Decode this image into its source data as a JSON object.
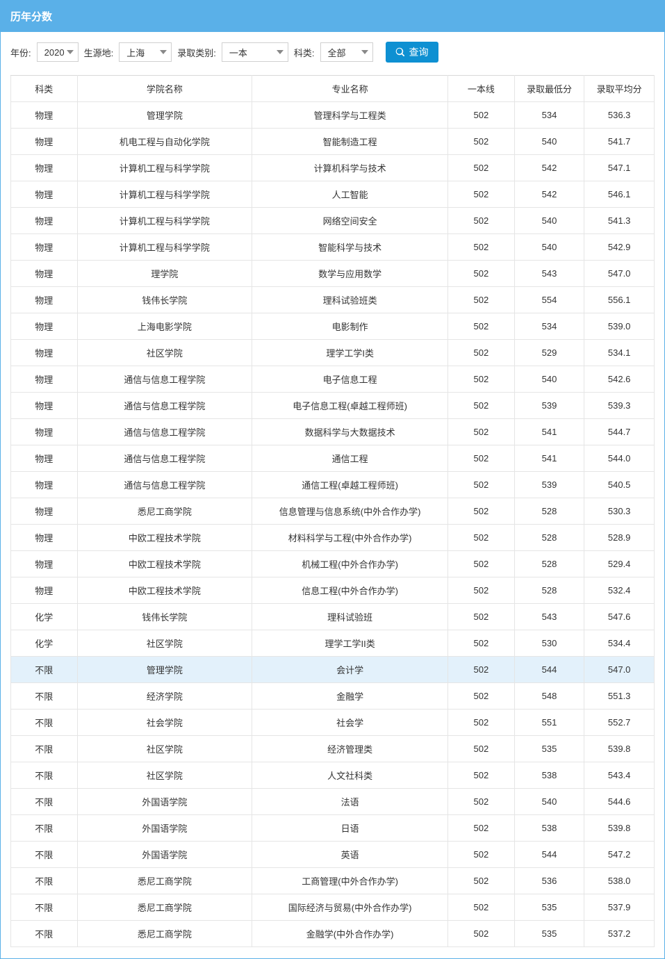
{
  "title": "历年分数",
  "filters": {
    "year_label": "年份:",
    "year_value": "2020",
    "origin_label": "生源地:",
    "origin_value": "上海",
    "category_label": "录取类别:",
    "category_value": "一本",
    "subject_label": "科类:",
    "subject_value": "全部"
  },
  "search_label": "查询",
  "table": {
    "columns": [
      "科类",
      "学院名称",
      "专业名称",
      "一本线",
      "录取最低分",
      "录取平均分"
    ],
    "col_keys": [
      "subject",
      "college",
      "major",
      "line",
      "min",
      "avg"
    ],
    "highlight_index": 22,
    "rows": [
      [
        "物理",
        "管理学院",
        "管理科学与工程类",
        "502",
        "534",
        "536.3"
      ],
      [
        "物理",
        "机电工程与自动化学院",
        "智能制造工程",
        "502",
        "540",
        "541.7"
      ],
      [
        "物理",
        "计算机工程与科学学院",
        "计算机科学与技术",
        "502",
        "542",
        "547.1"
      ],
      [
        "物理",
        "计算机工程与科学学院",
        "人工智能",
        "502",
        "542",
        "546.1"
      ],
      [
        "物理",
        "计算机工程与科学学院",
        "网络空间安全",
        "502",
        "540",
        "541.3"
      ],
      [
        "物理",
        "计算机工程与科学学院",
        "智能科学与技术",
        "502",
        "540",
        "542.9"
      ],
      [
        "物理",
        "理学院",
        "数学与应用数学",
        "502",
        "543",
        "547.0"
      ],
      [
        "物理",
        "钱伟长学院",
        "理科试验班类",
        "502",
        "554",
        "556.1"
      ],
      [
        "物理",
        "上海电影学院",
        "电影制作",
        "502",
        "534",
        "539.0"
      ],
      [
        "物理",
        "社区学院",
        "理学工学I类",
        "502",
        "529",
        "534.1"
      ],
      [
        "物理",
        "通信与信息工程学院",
        "电子信息工程",
        "502",
        "540",
        "542.6"
      ],
      [
        "物理",
        "通信与信息工程学院",
        "电子信息工程(卓越工程师班)",
        "502",
        "539",
        "539.3"
      ],
      [
        "物理",
        "通信与信息工程学院",
        "数据科学与大数据技术",
        "502",
        "541",
        "544.7"
      ],
      [
        "物理",
        "通信与信息工程学院",
        "通信工程",
        "502",
        "541",
        "544.0"
      ],
      [
        "物理",
        "通信与信息工程学院",
        "通信工程(卓越工程师班)",
        "502",
        "539",
        "540.5"
      ],
      [
        "物理",
        "悉尼工商学院",
        "信息管理与信息系统(中外合作办学)",
        "502",
        "528",
        "530.3"
      ],
      [
        "物理",
        "中欧工程技术学院",
        "材料科学与工程(中外合作办学)",
        "502",
        "528",
        "528.9"
      ],
      [
        "物理",
        "中欧工程技术学院",
        "机械工程(中外合作办学)",
        "502",
        "528",
        "529.4"
      ],
      [
        "物理",
        "中欧工程技术学院",
        "信息工程(中外合作办学)",
        "502",
        "528",
        "532.4"
      ],
      [
        "化学",
        "钱伟长学院",
        "理科试验班",
        "502",
        "543",
        "547.6"
      ],
      [
        "化学",
        "社区学院",
        "理学工学II类",
        "502",
        "530",
        "534.4"
      ],
      [
        "不限",
        "管理学院",
        "会计学",
        "502",
        "544",
        "547.0"
      ],
      [
        "不限",
        "经济学院",
        "金融学",
        "502",
        "548",
        "551.3"
      ],
      [
        "不限",
        "社会学院",
        "社会学",
        "502",
        "551",
        "552.7"
      ],
      [
        "不限",
        "社区学院",
        "经济管理类",
        "502",
        "535",
        "539.8"
      ],
      [
        "不限",
        "社区学院",
        "人文社科类",
        "502",
        "538",
        "543.4"
      ],
      [
        "不限",
        "外国语学院",
        "法语",
        "502",
        "540",
        "544.6"
      ],
      [
        "不限",
        "外国语学院",
        "日语",
        "502",
        "538",
        "539.8"
      ],
      [
        "不限",
        "外国语学院",
        "英语",
        "502",
        "544",
        "547.2"
      ],
      [
        "不限",
        "悉尼工商学院",
        "工商管理(中外合作办学)",
        "502",
        "536",
        "538.0"
      ],
      [
        "不限",
        "悉尼工商学院",
        "国际经济与贸易(中外合作办学)",
        "502",
        "535",
        "537.9"
      ],
      [
        "不限",
        "悉尼工商学院",
        "金融学(中外合作办学)",
        "502",
        "535",
        "537.2"
      ]
    ]
  },
  "styling": {
    "header_bg": "#5ab0e8",
    "header_text": "#ffffff",
    "border_color": "#e5e5e5",
    "highlight_bg": "#e3f1fb",
    "button_bg": "#0e90d2",
    "font_size_base": 13
  }
}
